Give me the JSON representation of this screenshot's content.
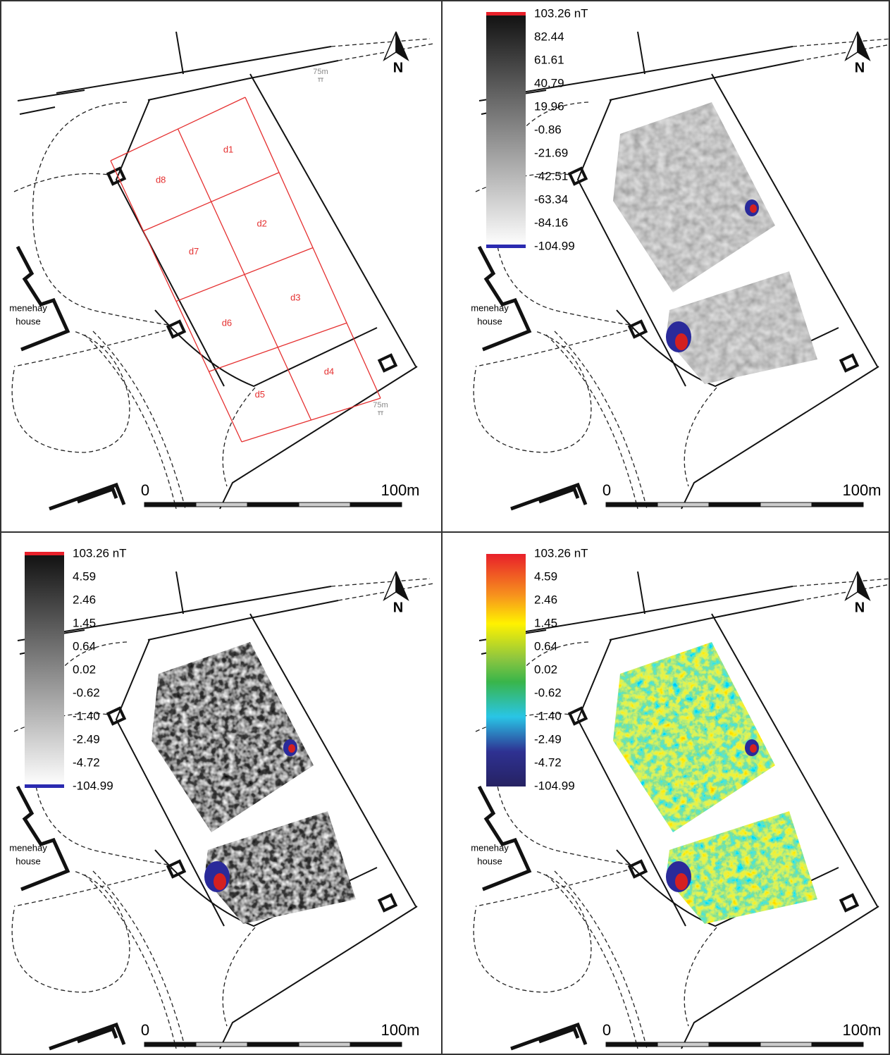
{
  "panels": [
    {
      "north": "N",
      "house": [
        "menehay",
        "house"
      ],
      "scale": [
        "0",
        "100m"
      ],
      "grid_labels": [
        "d1",
        "d2",
        "d3",
        "d4",
        "d5",
        "d6",
        "d7",
        "d8"
      ],
      "grid_markers": [
        "75m",
        "75m"
      ]
    },
    {
      "north": "N",
      "house": [
        "menehay",
        "house"
      ],
      "scale": [
        "0",
        "100m"
      ],
      "legend": [
        "103.26 nT",
        "82.44",
        "61.61",
        "40.79",
        "19.96",
        "-0.86",
        "-21.69",
        "-42.51",
        "-63.34",
        "-84.16",
        "-104.99"
      ]
    },
    {
      "north": "N",
      "house": [
        "menehay",
        "house"
      ],
      "scale": [
        "0",
        "100m"
      ],
      "legend": [
        "103.26 nT",
        "4.59",
        "2.46",
        "1.45",
        "0.64",
        "0.02",
        "-0.62",
        "-1.40",
        "-2.49",
        "-4.72",
        "-104.99"
      ]
    },
    {
      "north": "N",
      "house": [
        "menehay",
        "house"
      ],
      "scale": [
        "0",
        "100m"
      ],
      "legend": [
        "103.26 nT",
        "4.59",
        "2.46",
        "1.45",
        "0.64",
        "0.02",
        "-0.62",
        "-1.40",
        "-2.49",
        "-4.72",
        "-104.99"
      ]
    }
  ]
}
